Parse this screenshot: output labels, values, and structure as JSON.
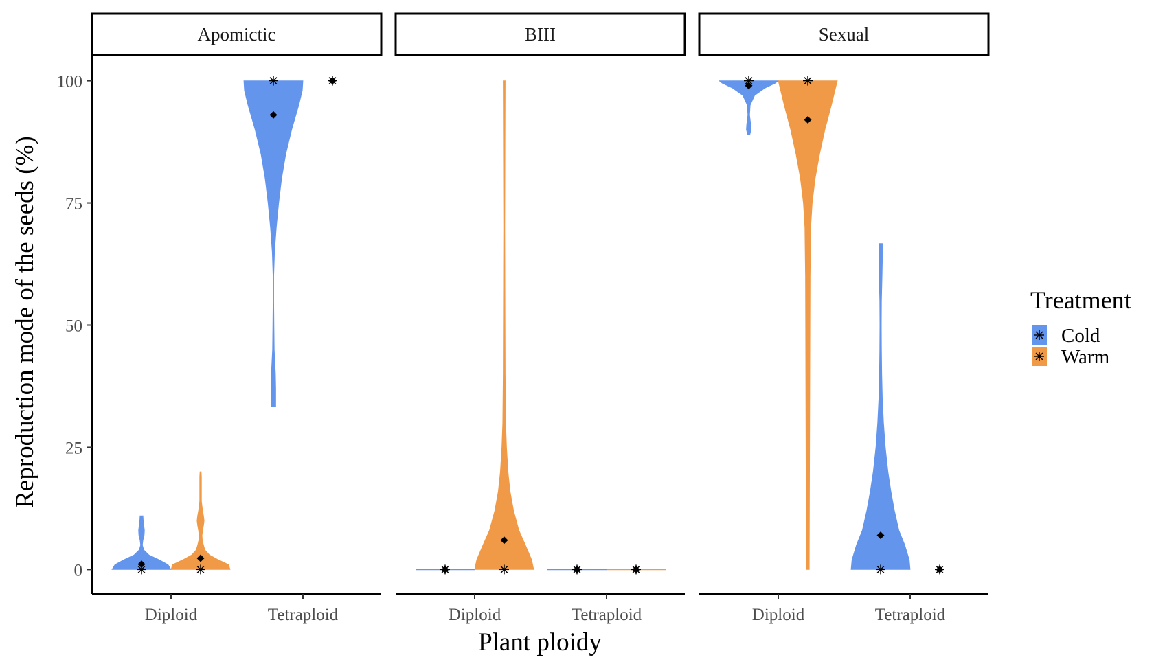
{
  "chart_data": {
    "type": "violin",
    "xlabel": "Plant ploidy",
    "ylabel": "Reproduction mode of the seeds (%)",
    "ylim": [
      -5,
      105
    ],
    "yticks": [
      0,
      25,
      50,
      75,
      100
    ],
    "categories": [
      "Diploid",
      "Tetraploid"
    ],
    "facets": [
      {
        "label": "Apomictic",
        "violins": [
          {
            "ploidy": "Diploid",
            "treatment": "Cold",
            "profile": [
              [
                0,
                1.0
              ],
              [
                1,
                0.9
              ],
              [
                2,
                0.6
              ],
              [
                3,
                0.25
              ],
              [
                4,
                0.08
              ],
              [
                5,
                0.03
              ],
              [
                6,
                0.05
              ],
              [
                7,
                0.09
              ],
              [
                8,
                0.1
              ],
              [
                9,
                0.08
              ],
              [
                10,
                0.06
              ],
              [
                11,
                0.05
              ]
            ],
            "mean": 1.1,
            "median": 0
          },
          {
            "ploidy": "Diploid",
            "treatment": "Warm",
            "profile": [
              [
                0,
                1.0
              ],
              [
                1,
                0.95
              ],
              [
                2,
                0.6
              ],
              [
                3,
                0.3
              ],
              [
                4,
                0.15
              ],
              [
                5,
                0.1
              ],
              [
                6,
                0.06
              ],
              [
                7,
                0.05
              ],
              [
                8,
                0.07
              ],
              [
                9,
                0.1
              ],
              [
                10,
                0.12
              ],
              [
                11,
                0.1
              ],
              [
                12,
                0.07
              ],
              [
                13,
                0.05
              ],
              [
                14,
                0.03
              ],
              [
                15,
                0.03
              ],
              [
                16,
                0.03
              ],
              [
                17,
                0.03
              ],
              [
                18,
                0.03
              ],
              [
                19,
                0.03
              ],
              [
                20,
                0.02
              ]
            ],
            "mean": 2.3,
            "median": 0
          },
          {
            "ploidy": "Tetraploid",
            "treatment": "Cold",
            "profile": [
              [
                33.3,
                0.08
              ],
              [
                37,
                0.08
              ],
              [
                40,
                0.07
              ],
              [
                45,
                0.03
              ],
              [
                50,
                0.02
              ],
              [
                55,
                0.01
              ],
              [
                60,
                0.01
              ],
              [
                65,
                0.04
              ],
              [
                70,
                0.1
              ],
              [
                75,
                0.18
              ],
              [
                80,
                0.28
              ],
              [
                85,
                0.42
              ],
              [
                90,
                0.62
              ],
              [
                95,
                0.86
              ],
              [
                98,
                0.98
              ],
              [
                100,
                1.0
              ]
            ],
            "mean": 93,
            "median": 100
          }
        ],
        "markers": [
          {
            "ploidy": "Tetraploid",
            "treatment": "Warm",
            "mean": 100,
            "median": 100
          }
        ]
      },
      {
        "label": "BIII",
        "violins": [
          {
            "ploidy": "Diploid",
            "treatment": "Cold",
            "profile": [
              [
                0,
                1.0
              ],
              [
                0.05,
                0.0
              ]
            ],
            "mean": 0,
            "median": 0
          },
          {
            "ploidy": "Diploid",
            "treatment": "Warm",
            "profile": [
              [
                0,
                1.0
              ],
              [
                2,
                0.93
              ],
              [
                5,
                0.72
              ],
              [
                8,
                0.5
              ],
              [
                12,
                0.32
              ],
              [
                16,
                0.2
              ],
              [
                20,
                0.13
              ],
              [
                25,
                0.08
              ],
              [
                30,
                0.05
              ],
              [
                40,
                0.035
              ],
              [
                50,
                0.03
              ],
              [
                60,
                0.025
              ],
              [
                70,
                0.02
              ],
              [
                80,
                0.025
              ],
              [
                90,
                0.03
              ],
              [
                100,
                0.035
              ]
            ],
            "mean": 6,
            "median": 0
          },
          {
            "ploidy": "Tetraploid",
            "treatment": "Cold",
            "profile": [
              [
                0,
                1.0
              ],
              [
                0.05,
                0.0
              ]
            ],
            "mean": 0,
            "median": 0
          },
          {
            "ploidy": "Tetraploid",
            "treatment": "Warm",
            "profile": [
              [
                0,
                1.0
              ],
              [
                0.05,
                0.0
              ]
            ],
            "mean": 0,
            "median": 0
          }
        ],
        "markers": []
      },
      {
        "label": "Sexual",
        "violins": [
          {
            "ploidy": "Diploid",
            "treatment": "Cold",
            "profile": [
              [
                89,
                0.04
              ],
              [
                90,
                0.08
              ],
              [
                91,
                0.07
              ],
              [
                93,
                0.03
              ],
              [
                95,
                0.05
              ],
              [
                97,
                0.2
              ],
              [
                98.5,
                0.55
              ],
              [
                99.5,
                0.9
              ],
              [
                100,
                1.0
              ]
            ],
            "mean": 99,
            "median": 100
          },
          {
            "ploidy": "Diploid",
            "treatment": "Warm",
            "profile": [
              [
                0,
                0.05
              ],
              [
                10,
                0.055
              ],
              [
                20,
                0.06
              ],
              [
                30,
                0.065
              ],
              [
                40,
                0.07
              ],
              [
                50,
                0.075
              ],
              [
                60,
                0.08
              ],
              [
                70,
                0.1
              ],
              [
                75,
                0.15
              ],
              [
                80,
                0.25
              ],
              [
                85,
                0.4
              ],
              [
                90,
                0.58
              ],
              [
                95,
                0.8
              ],
              [
                98,
                0.92
              ],
              [
                100,
                1.0
              ]
            ],
            "mean": 92,
            "median": 100
          },
          {
            "ploidy": "Tetraploid",
            "treatment": "Cold",
            "profile": [
              [
                0,
                1.0
              ],
              [
                2,
                0.97
              ],
              [
                5,
                0.82
              ],
              [
                8,
                0.62
              ],
              [
                12,
                0.47
              ],
              [
                16,
                0.35
              ],
              [
                20,
                0.25
              ],
              [
                25,
                0.16
              ],
              [
                30,
                0.1
              ],
              [
                35,
                0.06
              ],
              [
                40,
                0.04
              ],
              [
                45,
                0.03
              ],
              [
                50,
                0.025
              ],
              [
                55,
                0.03
              ],
              [
                60,
                0.05
              ],
              [
                63,
                0.06
              ],
              [
                66.7,
                0.06
              ]
            ],
            "mean": 7,
            "median": 0
          }
        ],
        "markers": [
          {
            "ploidy": "Tetraploid",
            "treatment": "Warm",
            "mean": 0,
            "median": 0
          }
        ]
      }
    ],
    "legend": {
      "title": "Treatment",
      "placement": "right",
      "entries": [
        {
          "label": "Cold",
          "color": "#6495ED"
        },
        {
          "label": "Warm",
          "color": "#F09A47"
        }
      ]
    },
    "colors": {
      "Cold": "#6495ED",
      "Warm": "#F09A47"
    },
    "grid": false
  }
}
